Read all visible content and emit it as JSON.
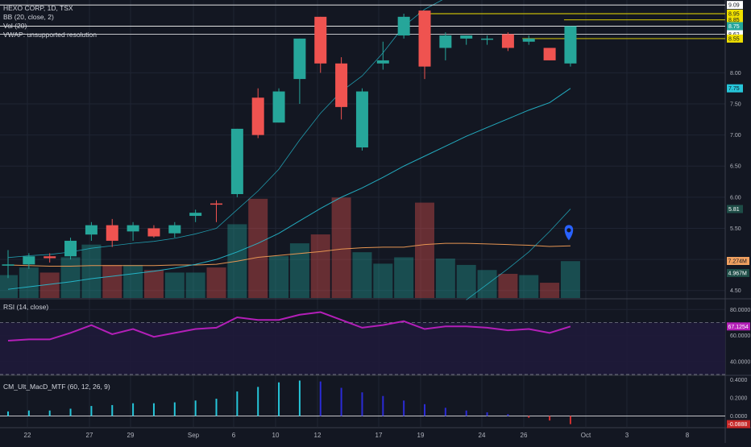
{
  "symbol_line": "HEXO CORP, 1D, TSX",
  "legend": {
    "bb": "BB (20, close, 2)",
    "vol": "Vol (20)",
    "vwap": "VWAP: unsupported resolution",
    "rsi": "RSI (14, close)",
    "macd": "CM_Ult_MacD_MTF (60, 12, 26, 9)"
  },
  "colors": {
    "background": "#131722",
    "up": "#26a69a",
    "down": "#ef5350",
    "bb_line": "#26c6da",
    "vol_ma": "#e69552",
    "rsi_line": "#b31fb8",
    "rsi_band": "#1f1a3a",
    "macd_up": "#26c6da",
    "macd_down": "#2b2bd6",
    "macd_neg": "#d32f2f",
    "hline": "#ffffff",
    "yellow": "#f0e000",
    "marker": "#2962ff"
  },
  "chart_data": [
    {
      "type": "candlestick",
      "title": "HEXO CORP, 1D, TSX",
      "x_labels": [
        "22",
        "27",
        "29",
        "Sep",
        "6",
        "10",
        "12",
        "17",
        "19",
        "24",
        "26",
        "Oct",
        "3",
        "8"
      ],
      "y_ticks": [
        4.5,
        5.0,
        5.5,
        6.0,
        6.5,
        7.0,
        7.5,
        8.0
      ],
      "ylim": [
        4.38,
        9.17
      ],
      "candles": [
        {
          "o": 4.9,
          "h": 5.15,
          "l": 4.7,
          "c": 4.92
        },
        {
          "o": 4.92,
          "h": 5.1,
          "l": 4.85,
          "c": 5.05
        },
        {
          "o": 5.05,
          "h": 5.1,
          "l": 4.95,
          "c": 5.02
        },
        {
          "o": 5.05,
          "h": 5.35,
          "l": 5.0,
          "c": 5.3
        },
        {
          "o": 5.4,
          "h": 5.6,
          "l": 5.3,
          "c": 5.55
        },
        {
          "o": 5.55,
          "h": 5.65,
          "l": 5.2,
          "c": 5.3
        },
        {
          "o": 5.45,
          "h": 5.6,
          "l": 5.3,
          "c": 5.55
        },
        {
          "o": 5.5,
          "h": 5.55,
          "l": 5.35,
          "c": 5.37
        },
        {
          "o": 5.42,
          "h": 5.6,
          "l": 5.35,
          "c": 5.55
        },
        {
          "o": 5.7,
          "h": 5.8,
          "l": 5.6,
          "c": 5.75
        },
        {
          "o": 5.9,
          "h": 5.95,
          "l": 5.6,
          "c": 5.88
        },
        {
          "o": 6.05,
          "h": 7.1,
          "l": 6.0,
          "c": 7.1
        },
        {
          "o": 7.6,
          "h": 7.75,
          "l": 6.95,
          "c": 7.0
        },
        {
          "o": 7.2,
          "h": 7.75,
          "l": 7.2,
          "c": 7.7
        },
        {
          "o": 7.9,
          "h": 8.55,
          "l": 7.5,
          "c": 8.55
        },
        {
          "o": 8.9,
          "h": 8.9,
          "l": 8.0,
          "c": 8.15
        },
        {
          "o": 8.15,
          "h": 8.25,
          "l": 7.25,
          "c": 7.45
        },
        {
          "o": 6.8,
          "h": 7.75,
          "l": 6.75,
          "c": 7.7
        },
        {
          "o": 8.15,
          "h": 8.5,
          "l": 8.05,
          "c": 8.2
        },
        {
          "o": 8.6,
          "h": 8.95,
          "l": 8.55,
          "c": 8.9
        },
        {
          "o": 9.0,
          "h": 9.0,
          "l": 7.9,
          "c": 8.1
        },
        {
          "o": 8.4,
          "h": 8.65,
          "l": 8.2,
          "c": 8.6
        },
        {
          "o": 8.55,
          "h": 8.6,
          "l": 8.45,
          "c": 8.6
        },
        {
          "o": 8.55,
          "h": 8.6,
          "l": 8.45,
          "c": 8.55
        },
        {
          "o": 8.62,
          "h": 8.65,
          "l": 8.35,
          "c": 8.4
        },
        {
          "o": 8.5,
          "h": 8.6,
          "l": 8.45,
          "c": 8.55
        },
        {
          "o": 8.4,
          "h": 8.4,
          "l": 8.2,
          "c": 8.2
        },
        {
          "o": 8.15,
          "h": 8.75,
          "l": 8.1,
          "c": 8.75
        }
      ],
      "bb_upper": [
        5.03,
        5.06,
        5.08,
        5.12,
        5.18,
        5.22,
        5.26,
        5.29,
        5.34,
        5.41,
        5.5,
        5.8,
        6.1,
        6.45,
        6.92,
        7.35,
        7.7,
        7.95,
        8.32,
        8.75,
        9.02,
        9.2,
        9.38,
        9.5,
        9.62,
        9.72,
        9.8,
        9.88
      ],
      "bb_mid": [
        4.52,
        4.56,
        4.6,
        4.64,
        4.69,
        4.73,
        4.77,
        4.81,
        4.86,
        4.92,
        5.0,
        5.12,
        5.26,
        5.42,
        5.62,
        5.82,
        6.0,
        6.15,
        6.32,
        6.5,
        6.66,
        6.82,
        6.98,
        7.12,
        7.26,
        7.4,
        7.52,
        7.75
      ],
      "bb_lower": [
        null,
        null,
        null,
        null,
        null,
        null,
        null,
        null,
        null,
        null,
        null,
        null,
        null,
        null,
        null,
        null,
        null,
        null,
        null,
        null,
        null,
        null,
        4.35,
        4.6,
        4.85,
        5.12,
        5.45,
        5.81
      ],
      "price_labels": [
        {
          "value": 9.09,
          "style": "white"
        },
        {
          "value": 8.95,
          "style": "yellow"
        },
        {
          "value": 8.85,
          "style": "yellow"
        },
        {
          "value": 8.75,
          "style": "green"
        },
        {
          "value": 8.62,
          "style": "white"
        },
        {
          "value": 8.55,
          "style": "yellow"
        },
        {
          "value": 7.75,
          "style": "cyan"
        },
        {
          "value": 5.81,
          "style": "teal"
        }
      ],
      "horizontal_lines": [
        9.09,
        8.75,
        8.62
      ],
      "yellow_lines": [
        {
          "value": 8.95,
          "from": 20
        },
        {
          "value": 8.85,
          "from": 27
        },
        {
          "value": 8.55,
          "from": 25
        }
      ],
      "volume_labels": [
        "7.274M",
        "4.967M"
      ],
      "volume": [
        1.8,
        2.4,
        2.0,
        3.2,
        4.2,
        2.6,
        2.6,
        2.2,
        2.0,
        2.0,
        2.4,
        5.8,
        7.8,
        3.3,
        4.3,
        5.0,
        7.9,
        3.6,
        2.7,
        3.2,
        7.5,
        3.1,
        2.6,
        2.2,
        1.9,
        1.8,
        1.2,
        2.9
      ],
      "vol_ma": [
        2.6,
        2.55,
        2.5,
        2.5,
        2.55,
        2.55,
        2.55,
        2.55,
        2.6,
        2.6,
        2.65,
        2.9,
        3.2,
        3.35,
        3.5,
        3.65,
        3.85,
        3.95,
        4.0,
        4.0,
        4.2,
        4.3,
        4.3,
        4.25,
        4.2,
        4.15,
        4.05,
        4.1
      ],
      "vol_max": 9.5,
      "marker": {
        "index": 27,
        "value": 5.45
      }
    },
    {
      "type": "line",
      "title": "RSI (14, close)",
      "y_ticks": [
        40,
        60,
        80
      ],
      "band": [
        30,
        70
      ],
      "ylim": [
        30,
        87
      ],
      "values": [
        56,
        57,
        57,
        62,
        68,
        61,
        65,
        59,
        62,
        65,
        66,
        74,
        72,
        72,
        76,
        78,
        72,
        66,
        68,
        71,
        65,
        67,
        67,
        66,
        64,
        65,
        62,
        67
      ],
      "last_label": "67.1254"
    },
    {
      "type": "bar",
      "title": "CM_Ult_MacD_MTF (60, 12, 26, 9)",
      "y_ticks": [
        "0.0000",
        "0.2000",
        "0.4000"
      ],
      "ylim": [
        -0.12,
        0.43
      ],
      "values": [
        0.05,
        0.06,
        0.06,
        0.08,
        0.11,
        0.12,
        0.14,
        0.14,
        0.15,
        0.17,
        0.19,
        0.27,
        0.32,
        0.37,
        0.39,
        0.38,
        0.31,
        0.26,
        0.22,
        0.17,
        0.13,
        0.09,
        0.06,
        0.04,
        0.02,
        -0.02,
        -0.05,
        -0.09
      ],
      "last_label": "-0.0888"
    }
  ]
}
